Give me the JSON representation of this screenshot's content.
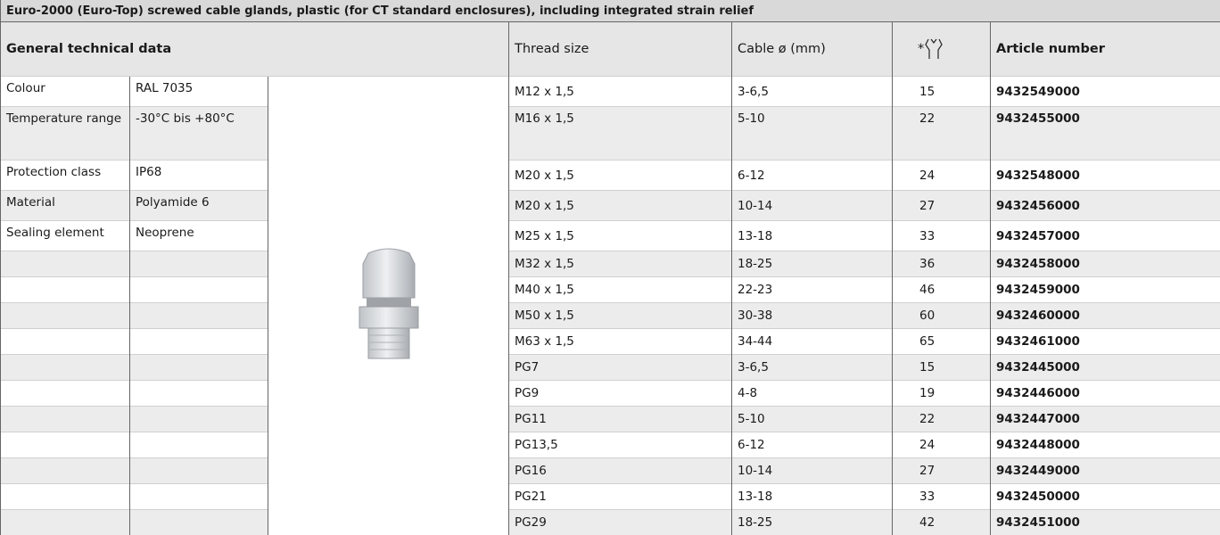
{
  "title": "Euro-2000 (Euro-Top) screwed cable glands, plastic (for CT standard enclosures), including integrated strain relief",
  "header": {
    "general": "General technical data",
    "thread": "Thread size",
    "cable": "Cable ø (mm)",
    "wrench_star": "*",
    "article": "Article number"
  },
  "general": [
    [
      "Colour",
      "RAL 7035"
    ],
    [
      "Temperature range",
      "-30°C bis +80°C"
    ],
    [
      "Protection class",
      "IP68"
    ],
    [
      "Material",
      "Polyamide  6"
    ],
    [
      "Sealing element",
      "Neoprene"
    ]
  ],
  "rows": [
    [
      "M12 x 1,5",
      "3-6,5",
      "15",
      "9432549000"
    ],
    [
      "M16 x 1,5",
      "5-10",
      "22",
      "9432455000"
    ],
    [
      "M20 x 1,5",
      "6-12",
      "24",
      "9432548000"
    ],
    [
      "M20 x 1,5",
      "10-14",
      "27",
      "9432456000"
    ],
    [
      "M25 x 1,5",
      "13-18",
      "33",
      "9432457000"
    ],
    [
      "M32 x 1,5",
      "18-25",
      "36",
      "9432458000"
    ],
    [
      "M40 x 1,5",
      "22-23",
      "46",
      "9432459000"
    ],
    [
      "M50 x 1,5",
      "30-38",
      "60",
      "9432460000"
    ],
    [
      "M63 x 1,5",
      "34-44",
      "65",
      "9432461000"
    ],
    [
      "PG7",
      "3-6,5",
      "15",
      "9432445000"
    ],
    [
      "PG9",
      "4-8",
      "19",
      "9432446000"
    ],
    [
      "PG11",
      "5-10",
      "22",
      "9432447000"
    ],
    [
      "PG13,5",
      "6-12",
      "24",
      "9432448000"
    ],
    [
      "PG16",
      "10-14",
      "27",
      "9432449000"
    ],
    [
      "PG21",
      "13-18",
      "33",
      "9432450000"
    ],
    [
      "PG29",
      "18-25",
      "42",
      "9432451000"
    ]
  ]
}
